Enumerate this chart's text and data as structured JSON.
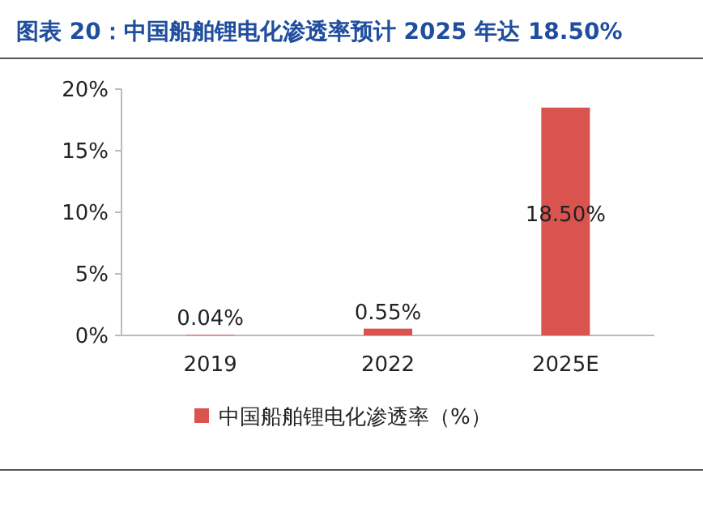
{
  "chart_data": {
    "type": "bar",
    "title": "图表 20：中国船舶锂电化渗透率预计 2025 年达 18.50%",
    "categories": [
      "2019",
      "2022",
      "2025E"
    ],
    "series": [
      {
        "name": "中国船舶锂电化渗透率（%）",
        "color": "#d9534f",
        "values": [
          0.04,
          0.55,
          18.5
        ],
        "value_labels": [
          "0.04%",
          "0.55%",
          "18.50%"
        ]
      }
    ],
    "ylim": [
      0,
      20
    ],
    "yticks": [
      {
        "value": 0,
        "label": "0%"
      },
      {
        "value": 5,
        "label": "5%"
      },
      {
        "value": 10,
        "label": "10%"
      },
      {
        "value": 15,
        "label": "15%"
      },
      {
        "value": 20,
        "label": "20%"
      }
    ],
    "legend": "bottom"
  }
}
